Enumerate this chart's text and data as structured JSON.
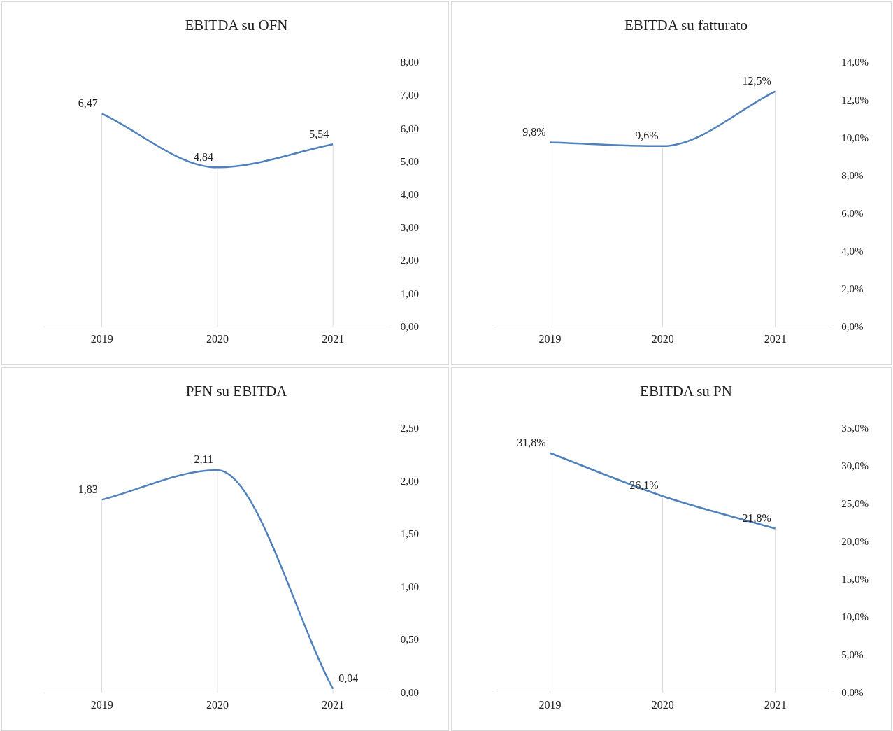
{
  "chart_data": [
    {
      "type": "line",
      "title": "EBITDA su OFN",
      "categories": [
        "2019",
        "2020",
        "2021"
      ],
      "series": [
        {
          "color": "#4f81bd",
          "values": [
            6.47,
            4.84,
            5.54
          ],
          "value_labels": [
            "6,47",
            "4,84",
            "5,54"
          ]
        }
      ],
      "ylim": [
        0,
        8
      ],
      "yticks": [
        {
          "value": 0,
          "label": "0,00"
        },
        {
          "value": 1,
          "label": "1,00"
        },
        {
          "value": 2,
          "label": "2,00"
        },
        {
          "value": 3,
          "label": "3,00"
        },
        {
          "value": 4,
          "label": "4,00"
        },
        {
          "value": 5,
          "label": "5,00"
        },
        {
          "value": 6,
          "label": "6,00"
        },
        {
          "value": 7,
          "label": "7,00"
        },
        {
          "value": 8,
          "label": "8,00"
        }
      ],
      "legend": false,
      "grid": "x",
      "marker": "none"
    },
    {
      "type": "line",
      "title": "EBITDA su fatturato",
      "categories": [
        "2019",
        "2020",
        "2021"
      ],
      "series": [
        {
          "color": "#4f81bd",
          "values": [
            9.8,
            9.6,
            12.5
          ],
          "value_labels": [
            "9,8%",
            "9,6%",
            "12,5%"
          ]
        }
      ],
      "ylim": [
        0,
        14
      ],
      "yticks": [
        {
          "value": 0,
          "label": "0,0%"
        },
        {
          "value": 2,
          "label": "2,0%"
        },
        {
          "value": 4,
          "label": "4,0%"
        },
        {
          "value": 6,
          "label": "6,0%"
        },
        {
          "value": 8,
          "label": "8,0%"
        },
        {
          "value": 10,
          "label": "10,0%"
        },
        {
          "value": 12,
          "label": "12,0%"
        },
        {
          "value": 14,
          "label": "14,0%"
        }
      ],
      "legend": false,
      "grid": "x",
      "marker": "none"
    },
    {
      "type": "line",
      "title": "PFN su EBITDA",
      "categories": [
        "2019",
        "2020",
        "2021"
      ],
      "series": [
        {
          "color": "#4f81bd",
          "values": [
            1.83,
            2.11,
            0.04
          ],
          "value_labels": [
            "1,83",
            "2,11",
            "0,04"
          ]
        }
      ],
      "ylim": [
        0,
        2.5
      ],
      "yticks": [
        {
          "value": 0,
          "label": "0,00"
        },
        {
          "value": 0.5,
          "label": "0,50"
        },
        {
          "value": 1,
          "label": "1,00"
        },
        {
          "value": 1.5,
          "label": "1,50"
        },
        {
          "value": 2,
          "label": "2,00"
        },
        {
          "value": 2.5,
          "label": "2,50"
        }
      ],
      "legend": false,
      "grid": "x",
      "marker": "none"
    },
    {
      "type": "line",
      "title": "EBITDA su PN",
      "categories": [
        "2019",
        "2020",
        "2021"
      ],
      "series": [
        {
          "color": "#4f81bd",
          "values": [
            31.8,
            26.1,
            21.8
          ],
          "value_labels": [
            "31,8%",
            "26,1%",
            "21,8%"
          ]
        }
      ],
      "ylim": [
        0,
        35
      ],
      "yticks": [
        {
          "value": 0,
          "label": "0,0%"
        },
        {
          "value": 5,
          "label": "5,0%"
        },
        {
          "value": 10,
          "label": "10,0%"
        },
        {
          "value": 15,
          "label": "15,0%"
        },
        {
          "value": 20,
          "label": "20,0%"
        },
        {
          "value": 25,
          "label": "25,0%"
        },
        {
          "value": 30,
          "label": "30,0%"
        },
        {
          "value": 35,
          "label": "35,0%"
        }
      ],
      "legend": false,
      "grid": "x",
      "marker": "none"
    }
  ]
}
